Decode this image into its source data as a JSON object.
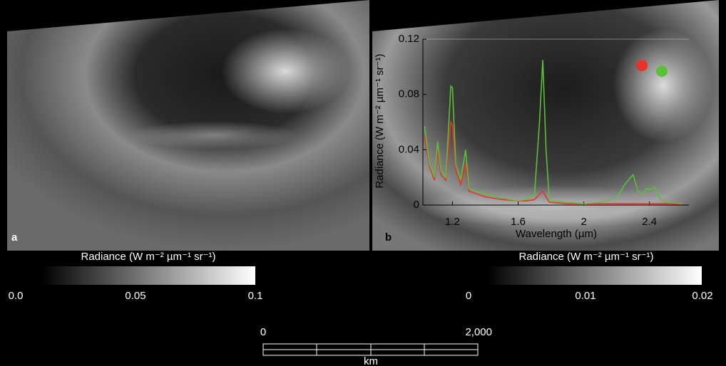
{
  "panel_labels": [
    "a",
    "b"
  ],
  "colorbars": [
    {
      "label": "Radiance (W m⁻² µm⁻¹ sr⁻¹)",
      "ticks": [
        {
          "value": 0,
          "label": "0.0"
        },
        0.05,
        0.1
      ]
    },
    {
      "label": "Radiance (W m⁻² µm⁻¹ sr⁻¹)",
      "ticks": [
        0,
        0.01,
        0.02
      ]
    }
  ],
  "scale_bar": {
    "ticks": [
      0,
      {
        "value": 2000,
        "label": "2,000"
      }
    ],
    "unit": "km"
  },
  "chart_data": {
    "type": "line",
    "xlabel": "Wavelength (µm)",
    "ylabel": "Radiance (W m⁻² µm⁻¹ sr⁻¹)",
    "x": [
      1.03,
      1.06,
      1.09,
      1.11,
      1.13,
      1.16,
      1.19,
      1.2,
      1.22,
      1.25,
      1.28,
      1.3,
      1.35,
      1.4,
      1.5,
      1.6,
      1.65,
      1.7,
      1.73,
      1.75,
      1.77,
      1.79,
      1.9,
      2.0,
      2.1,
      2.2,
      2.25,
      2.3,
      2.33,
      2.36,
      2.38,
      2.4,
      2.43,
      2.46,
      2.5,
      2.6
    ],
    "series": [
      {
        "color": "#e8322a",
        "values": [
          0.05,
          0.028,
          0.018,
          0.04,
          0.022,
          0.018,
          0.06,
          0.058,
          0.025,
          0.015,
          0.03,
          0.01,
          0.008,
          0.006,
          0.004,
          0.003,
          0.003,
          0.004,
          0.008,
          0.01,
          0.006,
          0.002,
          0.001,
          0.001,
          0.001,
          0.001,
          0.001,
          0.001,
          0.001,
          0.001,
          0.001,
          0.001,
          0.001,
          0.001,
          0.001,
          0.001
        ]
      },
      {
        "color": "#5bbf3a",
        "values": [
          0.057,
          0.03,
          0.02,
          0.046,
          0.025,
          0.02,
          0.086,
          0.085,
          0.03,
          0.018,
          0.04,
          0.012,
          0.01,
          0.008,
          0.005,
          0.003,
          0.004,
          0.008,
          0.06,
          0.105,
          0.04,
          0.003,
          0.002,
          0.001,
          0.002,
          0.005,
          0.015,
          0.022,
          0.01,
          0.008,
          0.012,
          0.011,
          0.013,
          0.005,
          0.002,
          0.001
        ]
      }
    ],
    "xlim": [
      1.02,
      2.64
    ],
    "ylim": [
      0,
      0.12
    ],
    "xticks": [
      1.2,
      1.6,
      2,
      2.4
    ],
    "yticks": [
      0,
      0.04,
      0.08,
      0.12
    ]
  }
}
